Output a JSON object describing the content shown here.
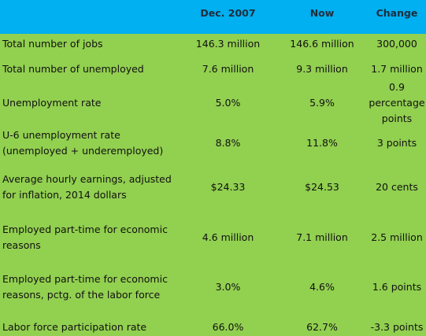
{
  "header": {
    "col1": "Dec. 2007",
    "col2": "Now",
    "col3": "Change"
  },
  "rows": [
    {
      "label": "Total number of jobs",
      "dec2007": "146.3 million",
      "now": "146.6 million",
      "change": "300,000"
    },
    {
      "label": "Total number of unemployed",
      "dec2007": "7.6 million",
      "now": "9.3 million",
      "change": "1.7 million"
    },
    {
      "label": "Unemployment rate",
      "dec2007": "5.0%",
      "now": "5.9%",
      "change": "0.9 percentage points"
    },
    {
      "label": "U-6 unemployment rate (unemployed + underemployed)",
      "dec2007": "8.8%",
      "now": "11.8%",
      "change": "3 points"
    },
    {
      "label": "Average hourly earnings, adjusted for inflation, 2014 dollars",
      "dec2007": "$24.33",
      "now": "$24.53",
      "change": "20 cents"
    },
    {
      "label": "Employed part-time for economic reasons",
      "dec2007": "4.6 million",
      "now": "7.1 million",
      "change": "2.5 million"
    },
    {
      "label": "Employed part-time for economic reasons, pctg. of the labor force",
      "dec2007": "3.0%",
      "now": "4.6%",
      "change": "1.6 points"
    },
    {
      "label": "Labor force participation rate",
      "dec2007": "66.0%",
      "now": "62.7%",
      "change": "-3.3 points"
    }
  ],
  "colors": {
    "header_bg": "#00b0f0",
    "body_bg": "#92d050"
  }
}
